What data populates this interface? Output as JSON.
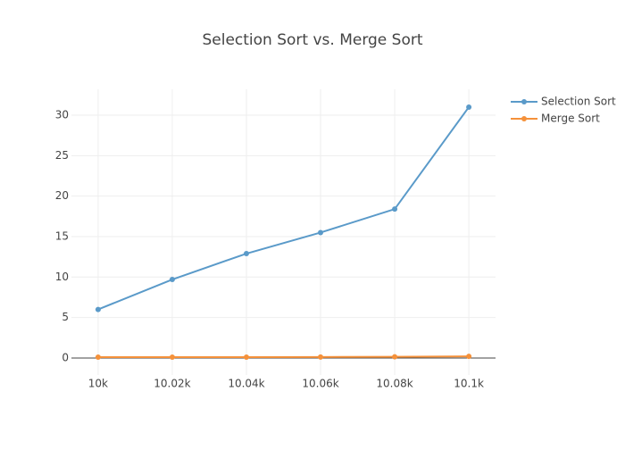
{
  "chart_data": {
    "type": "line",
    "title": "Selection Sort vs. Merge Sort",
    "x": [
      10000,
      10020,
      10040,
      10060,
      10080,
      10100
    ],
    "series": [
      {
        "name": "Selection Sort",
        "color": "#5a9ac9",
        "values": [
          6.0,
          9.7,
          12.9,
          15.5,
          18.4,
          31.0
        ]
      },
      {
        "name": "Merge Sort",
        "color": "#f5913a",
        "values": [
          0.1,
          0.1,
          0.1,
          0.12,
          0.15,
          0.2
        ]
      }
    ],
    "xlim": [
      9992.8,
      10107.2
    ],
    "xticks": [
      {
        "value": 10000,
        "label": "10k"
      },
      {
        "value": 10020,
        "label": "10.02k"
      },
      {
        "value": 10040,
        "label": "10.04k"
      },
      {
        "value": 10060,
        "label": "10.06k"
      },
      {
        "value": 10080,
        "label": "10.08k"
      },
      {
        "value": 10100,
        "label": "10.1k"
      }
    ],
    "ylim": [
      -2.1,
      33.2
    ],
    "yticks": [
      0,
      5,
      10,
      15,
      20,
      25,
      30
    ],
    "grid": true,
    "legend": "right"
  }
}
